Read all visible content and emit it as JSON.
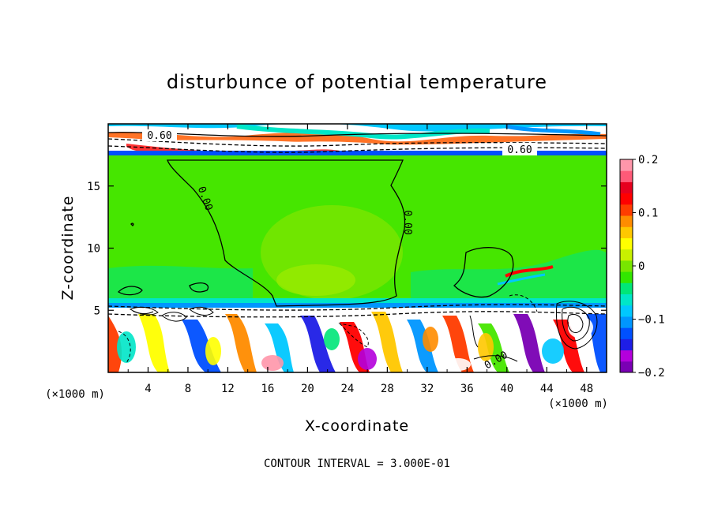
{
  "chart_data": {
    "type": "heatmap",
    "title": "disturbunce of potential temperature",
    "xlabel": "X-coordinate",
    "ylabel": "Z-coordinate",
    "x_unit": "(×1000 m)",
    "x_unit_right": "(×1000 m)",
    "xlim": [
      0,
      50
    ],
    "ylim": [
      0,
      20
    ],
    "x_ticks": [
      "4",
      "8",
      "12",
      "16",
      "20",
      "24",
      "28",
      "32",
      "36",
      "40",
      "44",
      "48"
    ],
    "y_ticks": [
      "5",
      "10",
      "15"
    ],
    "colorbar": {
      "range": [
        -0.2,
        0.2
      ],
      "tick_labels": [
        "0.2",
        "0.1",
        "0",
        "−0.1",
        "−0.2"
      ],
      "colors": [
        "#7a00b4",
        "#b400dc",
        "#1e1ee6",
        "#0050ff",
        "#0096ff",
        "#00c8ff",
        "#00e6c8",
        "#00e678",
        "#32e600",
        "#78e600",
        "#c8f000",
        "#ffff00",
        "#ffc800",
        "#ff8c00",
        "#ff3c00",
        "#ff0000",
        "#e6001e",
        "#ff5a78",
        "#ff96aa"
      ]
    },
    "contour_labels": [
      "0.60",
      "0.60",
      "0.00",
      "0.00",
      "0.00"
    ],
    "footer": "CONTOUR INTERVAL = 3.000E-01"
  }
}
